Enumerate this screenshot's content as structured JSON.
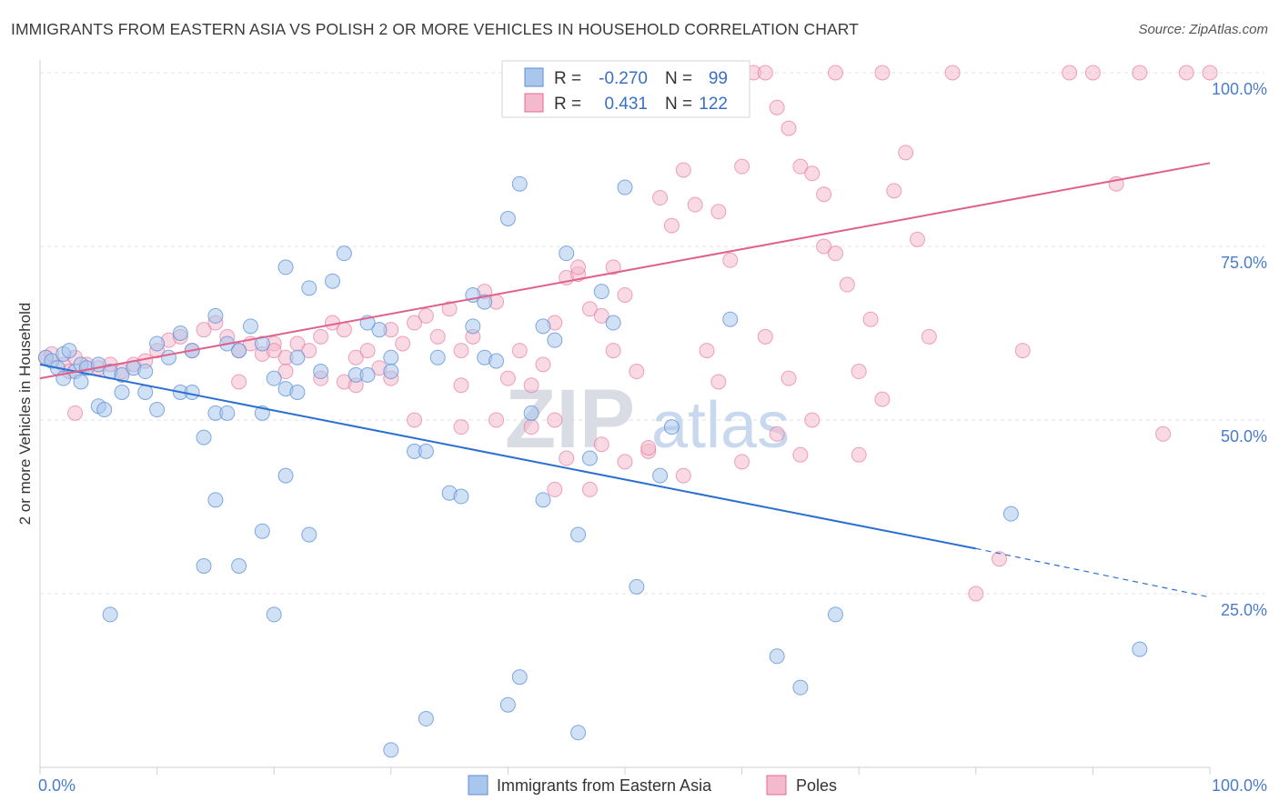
{
  "title": "IMMIGRANTS FROM EASTERN ASIA VS POLISH 2 OR MORE VEHICLES IN HOUSEHOLD CORRELATION CHART",
  "source": "Source: ZipAtlas.com",
  "watermark": {
    "zip": "ZIP",
    "atlas": "atlas"
  },
  "legend": {
    "r_label": "R =",
    "n_label": "N =",
    "rows": [
      {
        "r": "-0.270",
        "n": "99"
      },
      {
        "r": "0.431",
        "n": "122"
      }
    ]
  },
  "chart_data": {
    "type": "scatter",
    "xlabel": "",
    "ylabel": "2 or more Vehicles in Household",
    "xlim": [
      0,
      100
    ],
    "ylim": [
      0,
      100
    ],
    "x_tick_labels": [
      "0.0%",
      "100.0%"
    ],
    "y_tick_labels": [
      "25.0%",
      "50.0%",
      "75.0%",
      "100.0%"
    ],
    "grid": true,
    "colors": {
      "blue": "#5b8fd6",
      "blue_fill": "#a9c6ec",
      "pink": "#e56b94",
      "pink_fill": "#f4b9cc",
      "blue_line": "#2b6fd1",
      "pink_line": "#e0608c"
    },
    "series": [
      {
        "name": "Immigrants from Eastern Asia",
        "trend": {
          "x": [
            0,
            80
          ],
          "y": [
            58,
            31.5
          ],
          "dashed_to": [
            100,
            24.5
          ]
        },
        "points": [
          [
            0.5,
            59
          ],
          [
            1,
            58.5
          ],
          [
            1.5,
            57.5
          ],
          [
            2,
            59.5
          ],
          [
            2.5,
            60
          ],
          [
            3,
            57
          ],
          [
            3.5,
            58
          ],
          [
            4,
            57.5
          ],
          [
            5,
            58
          ],
          [
            6,
            57
          ],
          [
            2,
            56
          ],
          [
            3.5,
            55.5
          ],
          [
            7,
            56.5
          ],
          [
            8,
            57.5
          ],
          [
            9,
            57
          ],
          [
            10,
            61
          ],
          [
            11,
            59
          ],
          [
            12,
            62.5
          ],
          [
            13,
            60
          ],
          [
            15,
            65
          ],
          [
            16,
            61
          ],
          [
            17,
            60
          ],
          [
            18,
            63.5
          ],
          [
            19,
            61
          ],
          [
            20,
            56
          ],
          [
            21,
            54.5
          ],
          [
            22,
            54
          ],
          [
            9,
            54
          ],
          [
            7,
            54
          ],
          [
            5,
            52
          ],
          [
            5.5,
            51.5
          ],
          [
            10,
            51.5
          ],
          [
            15,
            51
          ],
          [
            16,
            51
          ],
          [
            19,
            51
          ],
          [
            12,
            54
          ],
          [
            13,
            54
          ],
          [
            14,
            47.5
          ],
          [
            23,
            69
          ],
          [
            21,
            72
          ],
          [
            25,
            70
          ],
          [
            26,
            74
          ],
          [
            22,
            59
          ],
          [
            24,
            57
          ],
          [
            27,
            56.5
          ],
          [
            28,
            56.5
          ],
          [
            29,
            63
          ],
          [
            30,
            59
          ],
          [
            28,
            64
          ],
          [
            30,
            57
          ],
          [
            32,
            45.5
          ],
          [
            33,
            45.5
          ],
          [
            34,
            59
          ],
          [
            35,
            39.5
          ],
          [
            36,
            39
          ],
          [
            37,
            68
          ],
          [
            38,
            67
          ],
          [
            37,
            63.5
          ],
          [
            38,
            59
          ],
          [
            39,
            58.5
          ],
          [
            40,
            79
          ],
          [
            41,
            84
          ],
          [
            42,
            51
          ],
          [
            43,
            63.5
          ],
          [
            44,
            61.5
          ],
          [
            43,
            38.5
          ],
          [
            45,
            74
          ],
          [
            46,
            33.5
          ],
          [
            47,
            44.5
          ],
          [
            48,
            68.5
          ],
          [
            49,
            64
          ],
          [
            50,
            83.5
          ],
          [
            51,
            26
          ],
          [
            53,
            42
          ],
          [
            54,
            49
          ],
          [
            55,
            100
          ],
          [
            59,
            64.5
          ],
          [
            15,
            38.5
          ],
          [
            14,
            29
          ],
          [
            17,
            29
          ],
          [
            19,
            34
          ],
          [
            21,
            42
          ],
          [
            23,
            33.5
          ],
          [
            20,
            22
          ],
          [
            6,
            22
          ],
          [
            30,
            2.5
          ],
          [
            33,
            7
          ],
          [
            40,
            9
          ],
          [
            41,
            13
          ],
          [
            46,
            5
          ],
          [
            63,
            16
          ],
          [
            65,
            11.5
          ],
          [
            68,
            22
          ],
          [
            83,
            36.5
          ],
          [
            94,
            17
          ]
        ]
      },
      {
        "name": "Poles",
        "trend": {
          "x": [
            0,
            100
          ],
          "y": [
            56,
            87
          ]
        },
        "points": [
          [
            0.5,
            59
          ],
          [
            1,
            59.5
          ],
          [
            2,
            58
          ],
          [
            2.5,
            57
          ],
          [
            3,
            51
          ],
          [
            4,
            58
          ],
          [
            5,
            57.5
          ],
          [
            6,
            58
          ],
          [
            7,
            57
          ],
          [
            8,
            58
          ],
          [
            9,
            58.5
          ],
          [
            10,
            60
          ],
          [
            11,
            61.5
          ],
          [
            12,
            62
          ],
          [
            13,
            60
          ],
          [
            14,
            63
          ],
          [
            15,
            64
          ],
          [
            16,
            62
          ],
          [
            17,
            60
          ],
          [
            18,
            61
          ],
          [
            19,
            59.5
          ],
          [
            20,
            61
          ],
          [
            21,
            59
          ],
          [
            22,
            61
          ],
          [
            23,
            60
          ],
          [
            24,
            62
          ],
          [
            25,
            64
          ],
          [
            26,
            63
          ],
          [
            27,
            59
          ],
          [
            28,
            60
          ],
          [
            29,
            57.5
          ],
          [
            30,
            56
          ],
          [
            31,
            61
          ],
          [
            32,
            64
          ],
          [
            33,
            65
          ],
          [
            34,
            62
          ],
          [
            35,
            66
          ],
          [
            36,
            60
          ],
          [
            37,
            62
          ],
          [
            38,
            68.5
          ],
          [
            39,
            67
          ],
          [
            40,
            56
          ],
          [
            41,
            60
          ],
          [
            42,
            55
          ],
          [
            43,
            58
          ],
          [
            44,
            50
          ],
          [
            45,
            70.5
          ],
          [
            46,
            71
          ],
          [
            47,
            66
          ],
          [
            48,
            65
          ],
          [
            49,
            72
          ],
          [
            50,
            68
          ],
          [
            51,
            57
          ],
          [
            52,
            45.5
          ],
          [
            53,
            82
          ],
          [
            54,
            78
          ],
          [
            55,
            86
          ],
          [
            56,
            81
          ],
          [
            57,
            60
          ],
          [
            58,
            80
          ],
          [
            59,
            73
          ],
          [
            60,
            86.5
          ],
          [
            61,
            100
          ],
          [
            62,
            100
          ],
          [
            63,
            95
          ],
          [
            64,
            92
          ],
          [
            65,
            86.5
          ],
          [
            66,
            85.5
          ],
          [
            67,
            82.5
          ],
          [
            68,
            100
          ],
          [
            69,
            69.5
          ],
          [
            70,
            57
          ],
          [
            71,
            64.5
          ],
          [
            72,
            100
          ],
          [
            73,
            83
          ],
          [
            74,
            88.5
          ],
          [
            75,
            76
          ],
          [
            76,
            62
          ],
          [
            78,
            100
          ],
          [
            80,
            25
          ],
          [
            82,
            30
          ],
          [
            84,
            60
          ],
          [
            88,
            100
          ],
          [
            90,
            100
          ],
          [
            92,
            84
          ],
          [
            94,
            100
          ],
          [
            96,
            48
          ],
          [
            98,
            100
          ],
          [
            100,
            100
          ],
          [
            3,
            59
          ],
          [
            17,
            55.5
          ],
          [
            20,
            60
          ],
          [
            21,
            57
          ],
          [
            24,
            56
          ],
          [
            26,
            55.5
          ],
          [
            27,
            55
          ],
          [
            32,
            50
          ],
          [
            36,
            55
          ],
          [
            39,
            50
          ],
          [
            42,
            49
          ],
          [
            45,
            44.5
          ],
          [
            47,
            40
          ],
          [
            48,
            46.5
          ],
          [
            52,
            46
          ],
          [
            55,
            42
          ],
          [
            58,
            55.5
          ],
          [
            62,
            62
          ],
          [
            64,
            56
          ],
          [
            66,
            50
          ],
          [
            67,
            75
          ],
          [
            68,
            74
          ],
          [
            70,
            45
          ],
          [
            72,
            53
          ],
          [
            36,
            49
          ],
          [
            44,
            40
          ],
          [
            50,
            44
          ],
          [
            60,
            44
          ],
          [
            63,
            48
          ],
          [
            65,
            45
          ],
          [
            30,
            63
          ],
          [
            44,
            64
          ],
          [
            46,
            72
          ],
          [
            49,
            60
          ]
        ]
      }
    ]
  },
  "bottom_legend": [
    {
      "label": "Immigrants from Eastern Asia"
    },
    {
      "label": "Poles"
    }
  ]
}
